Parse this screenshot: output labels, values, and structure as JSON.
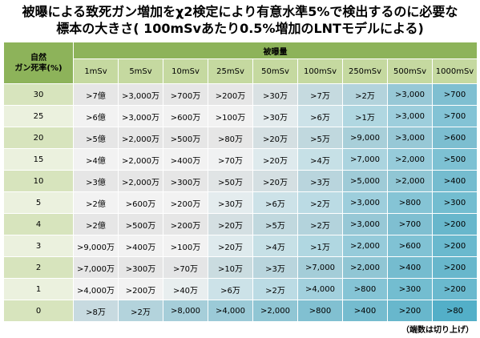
{
  "title": [
    "被曝による致死ガン増加をχ2検定により有意水準5%で検出するのに必要な",
    "標本の大きさ( 100mSvあたり0.5%増加のLNTモデルによる)"
  ],
  "table": {
    "corner": [
      "自然",
      "ガン死率(%)"
    ],
    "group_header": "被曝量",
    "columns": [
      "1mSv",
      "5mSv",
      "10mSv",
      "25mSv",
      "50mSv",
      "100mSv",
      "250mSv",
      "500mSv",
      "1000mSv"
    ],
    "rows": [
      {
        "label": "30",
        "cells": [
          ">7億",
          ">3,000万",
          ">700万",
          ">200万",
          ">30万",
          ">7万",
          ">2万",
          ">3,000",
          ">700"
        ]
      },
      {
        "label": "25",
        "cells": [
          ">6億",
          ">3,000万",
          ">600万",
          ">100万",
          ">30万",
          ">6万",
          ">1万",
          ">3,000",
          ">700"
        ]
      },
      {
        "label": "20",
        "cells": [
          ">5億",
          ">2,000万",
          ">500万",
          ">80万",
          ">20万",
          ">5万",
          ">9,000",
          ">3,000",
          ">600"
        ]
      },
      {
        "label": "15",
        "cells": [
          ">4億",
          ">2,000万",
          ">400万",
          ">70万",
          ">20万",
          ">4万",
          ">7,000",
          ">2,000",
          ">500"
        ]
      },
      {
        "label": "10",
        "cells": [
          ">3億",
          ">2,000万",
          ">300万",
          ">50万",
          ">20万",
          ">3万",
          ">5,000",
          ">2,000",
          ">400"
        ]
      },
      {
        "label": "5",
        "cells": [
          ">2億",
          ">600万",
          ">200万",
          ">30万",
          ">6万",
          ">2万",
          ">3,000",
          ">800",
          ">300"
        ]
      },
      {
        "label": "4",
        "cells": [
          ">2億",
          ">500万",
          ">200万",
          ">20万",
          ">5万",
          ">2万",
          ">3,000",
          ">700",
          ">200"
        ]
      },
      {
        "label": "3",
        "cells": [
          ">9,000万",
          ">400万",
          ">100万",
          ">20万",
          ">4万",
          ">1万",
          ">2,000",
          ">600",
          ">200"
        ]
      },
      {
        "label": "2",
        "cells": [
          ">7,000万",
          ">300万",
          ">70万",
          ">10万",
          ">3万",
          ">7,000",
          ">2,000",
          ">400",
          ">200"
        ]
      },
      {
        "label": "1",
        "cells": [
          ">4,000万",
          ">200万",
          ">40万",
          ">6万",
          ">2万",
          ">4,000",
          ">800",
          ">300",
          ">200"
        ]
      },
      {
        "label": "0",
        "cells": [
          ">8万",
          ">2万",
          ">8,000",
          ">4,000",
          ">2,000",
          ">800",
          ">400",
          ">200",
          ">80"
        ]
      }
    ]
  },
  "footer": "（端数は切り上げ）"
}
